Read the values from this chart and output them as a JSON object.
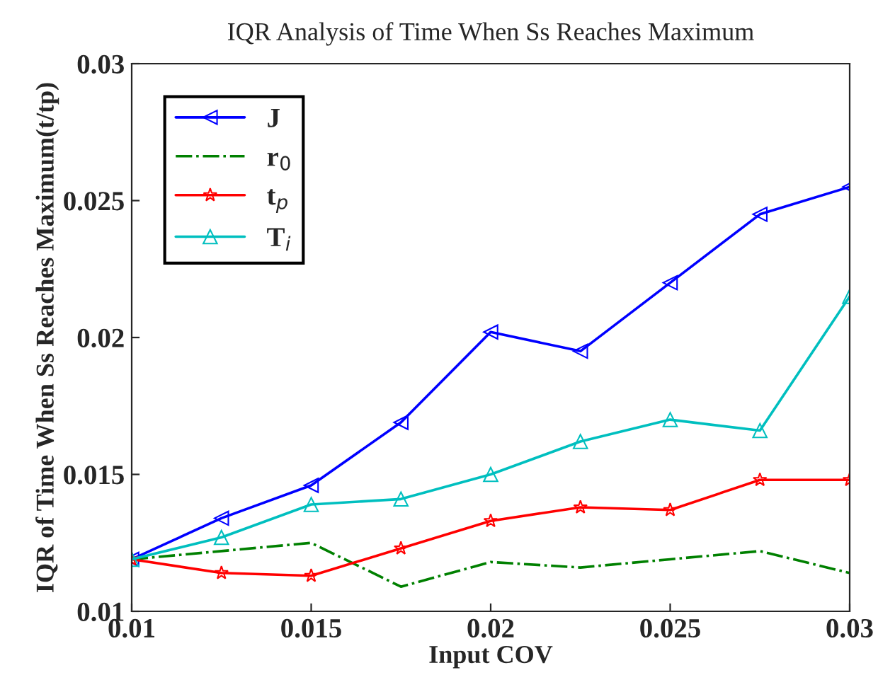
{
  "chart_data": {
    "type": "line",
    "title": "IQR Analysis of Time When Ss Reaches Maximum",
    "xlabel": "Input COV",
    "ylabel": "IQR of Time When Ss Reaches Maximum(t/tp)",
    "x": [
      0.01,
      0.0125,
      0.015,
      0.0175,
      0.02,
      0.0225,
      0.025,
      0.0275,
      0.03
    ],
    "series": [
      {
        "name": "J",
        "color": "#0000ff",
        "marker": "triangle_left",
        "line_style": "solid",
        "values": [
          0.0119,
          0.0134,
          0.0146,
          0.0169,
          0.0202,
          0.0195,
          0.022,
          0.0245,
          0.0255
        ]
      },
      {
        "name": "r$_{0}$",
        "color": "#008000",
        "marker": "none",
        "line_style": "dashdot",
        "values": [
          0.0119,
          0.0122,
          0.0125,
          0.0109,
          0.0118,
          0.0116,
          0.0119,
          0.0122,
          0.0114
        ]
      },
      {
        "name": "t$_{p}$",
        "color": "#ff0000",
        "marker": "star",
        "line_style": "solid",
        "values": [
          0.0119,
          0.0114,
          0.0113,
          0.0123,
          0.0133,
          0.0138,
          0.0137,
          0.0148,
          0.0148
        ]
      },
      {
        "name": "T$_{i}$",
        "color": "#00bfbf",
        "marker": "triangle",
        "line_style": "solid",
        "values": [
          0.0119,
          0.0127,
          0.0139,
          0.0141,
          0.015,
          0.0162,
          0.017,
          0.0166,
          0.0215
        ]
      }
    ],
    "xlim": [
      0.01,
      0.03
    ],
    "xticks": [
      0.01,
      0.015,
      0.02,
      0.025,
      0.03
    ],
    "ylim": [
      0.01,
      0.03
    ],
    "yticks": [
      0.01,
      0.015,
      0.02,
      0.025,
      0.03
    ],
    "grid": false,
    "legend": "top left"
  }
}
